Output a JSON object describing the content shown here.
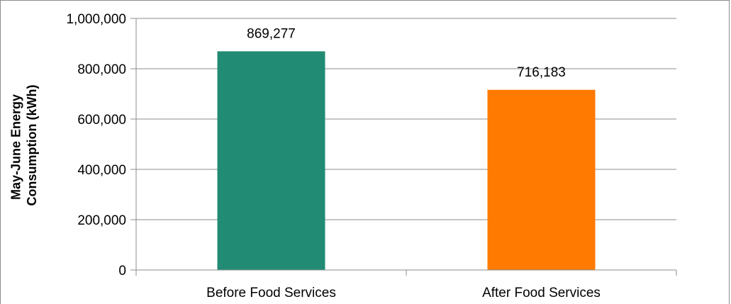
{
  "chart_data": {
    "type": "bar",
    "title": "",
    "xlabel": "",
    "ylabel_lines": [
      "May-June Energy",
      "Consumption (kWh)"
    ],
    "categories": [
      "Before Food Services",
      "After Food Services"
    ],
    "values": [
      869277,
      716183
    ],
    "value_labels": [
      "869,277",
      "716,183"
    ],
    "bar_colors": [
      "#218b73",
      "#fe7a00"
    ],
    "ylim": [
      0,
      1000000
    ],
    "yticks": [
      0,
      200000,
      400000,
      600000,
      800000,
      1000000
    ],
    "ytick_labels": [
      "0",
      "200,000",
      "400,000",
      "600,000",
      "800,000",
      "1,000,000"
    ],
    "grid": true,
    "legend": "none"
  }
}
